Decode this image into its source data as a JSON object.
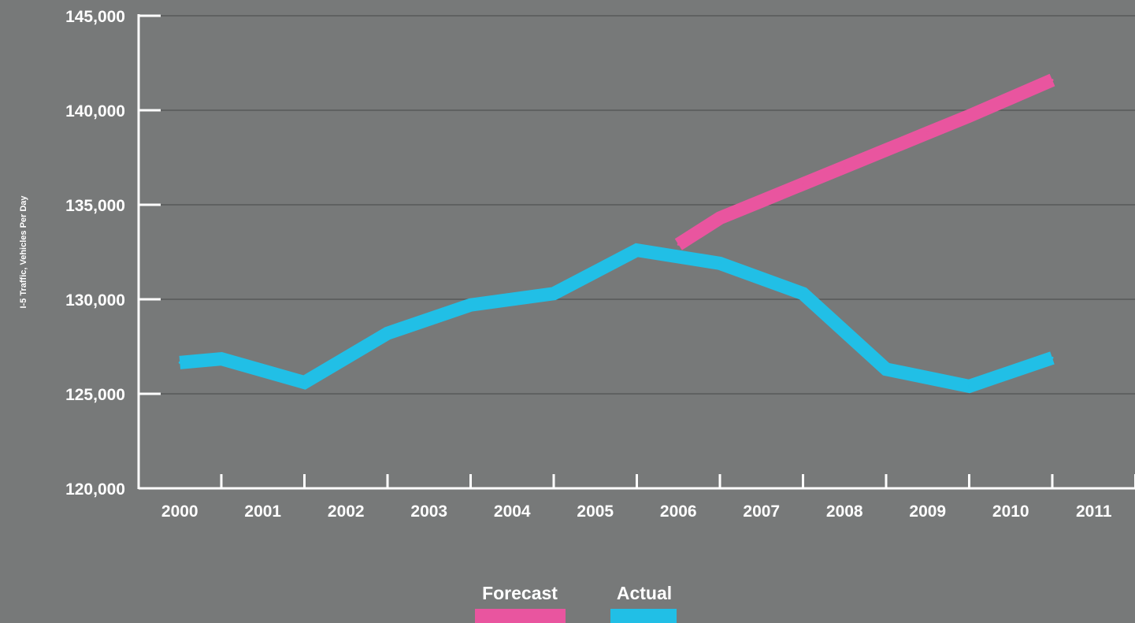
{
  "chart_data": {
    "type": "line",
    "title": "",
    "xlabel": "",
    "ylabel": "I-5 Traffic, Vehicles Per Day",
    "x_tick_labels": [
      "2000",
      "2001",
      "2002",
      "2003",
      "2004",
      "2005",
      "2006",
      "2007",
      "2008",
      "2009",
      "2010",
      "2011"
    ],
    "y_tick_labels": [
      "120,000",
      "125,000",
      "130,000",
      "135,000",
      "140,000",
      "145,000"
    ],
    "ylim": [
      120000,
      145000
    ],
    "grid": true,
    "legend_position": "bottom-center",
    "series": [
      {
        "name": "Forecast",
        "color": "#e9559f",
        "points": [
          {
            "x": 2005.5,
            "y": 132900
          },
          {
            "x": 2006,
            "y": 134300
          },
          {
            "x": 2006.5,
            "y": 135200
          },
          {
            "x": 2007,
            "y": 136100
          },
          {
            "x": 2007.5,
            "y": 137000
          },
          {
            "x": 2008,
            "y": 137900
          },
          {
            "x": 2008.5,
            "y": 138800
          },
          {
            "x": 2009,
            "y": 139700
          },
          {
            "x": 2009.5,
            "y": 140650
          },
          {
            "x": 2010,
            "y": 141600
          }
        ]
      },
      {
        "name": "Actual",
        "color": "#21bfe6",
        "points": [
          {
            "x": 1999.5,
            "y": 126650
          },
          {
            "x": 2000,
            "y": 126850
          },
          {
            "x": 2001,
            "y": 125600
          },
          {
            "x": 2002,
            "y": 128200
          },
          {
            "x": 2003,
            "y": 129700
          },
          {
            "x": 2004,
            "y": 130300
          },
          {
            "x": 2005,
            "y": 132600
          },
          {
            "x": 2006,
            "y": 131900
          },
          {
            "x": 2007,
            "y": 130300
          },
          {
            "x": 2008,
            "y": 126300
          },
          {
            "x": 2009,
            "y": 125400
          },
          {
            "x": 2010,
            "y": 126900
          }
        ]
      }
    ]
  },
  "legend": {
    "forecast_label": "Forecast",
    "actual_label": "Actual"
  }
}
